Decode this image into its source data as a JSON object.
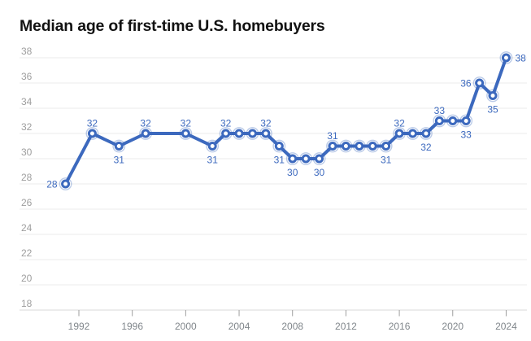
{
  "title": "Median age of first-time U.S. homebuyers",
  "chart_data": {
    "type": "line",
    "title": "Median age of first-time U.S. homebuyers",
    "xlabel": "",
    "ylabel": "",
    "ylim": [
      18,
      38
    ],
    "y_ticks": [
      38,
      36,
      34,
      32,
      30,
      28,
      26,
      24,
      22,
      20,
      18
    ],
    "x_ticks": [
      1992,
      1996,
      2000,
      2004,
      2008,
      2012,
      2016,
      2020,
      2024
    ],
    "grid": "horizontal",
    "legend": "none",
    "series": [
      {
        "name": "Median age",
        "points": [
          {
            "year": 1991,
            "value": 28,
            "label": "28",
            "label_pos": "left"
          },
          {
            "year": 1993,
            "value": 32,
            "label": "32",
            "label_pos": "above"
          },
          {
            "year": 1995,
            "value": 31,
            "label": "31",
            "label_pos": "below"
          },
          {
            "year": 1997,
            "value": 32,
            "label": "32",
            "label_pos": "above"
          },
          {
            "year": 2000,
            "value": 32,
            "label": "32",
            "label_pos": "above"
          },
          {
            "year": 2002,
            "value": 31,
            "label": "31",
            "label_pos": "below"
          },
          {
            "year": 2003,
            "value": 32,
            "label": "32",
            "label_pos": "above"
          },
          {
            "year": 2004,
            "value": 32,
            "label": null,
            "label_pos": null
          },
          {
            "year": 2005,
            "value": 32,
            "label": null,
            "label_pos": null
          },
          {
            "year": 2006,
            "value": 32,
            "label": "32",
            "label_pos": "above"
          },
          {
            "year": 2007,
            "value": 31,
            "label": "31",
            "label_pos": "below"
          },
          {
            "year": 2008,
            "value": 30,
            "label": "30",
            "label_pos": "below"
          },
          {
            "year": 2009,
            "value": 30,
            "label": null,
            "label_pos": null
          },
          {
            "year": 2010,
            "value": 30,
            "label": "30",
            "label_pos": "below"
          },
          {
            "year": 2011,
            "value": 31,
            "label": "31",
            "label_pos": "above"
          },
          {
            "year": 2012,
            "value": 31,
            "label": null,
            "label_pos": null
          },
          {
            "year": 2013,
            "value": 31,
            "label": null,
            "label_pos": null
          },
          {
            "year": 2014,
            "value": 31,
            "label": null,
            "label_pos": null
          },
          {
            "year": 2015,
            "value": 31,
            "label": "31",
            "label_pos": "below"
          },
          {
            "year": 2016,
            "value": 32,
            "label": "32",
            "label_pos": "above"
          },
          {
            "year": 2017,
            "value": 32,
            "label": null,
            "label_pos": null
          },
          {
            "year": 2018,
            "value": 32,
            "label": "32",
            "label_pos": "below"
          },
          {
            "year": 2019,
            "value": 33,
            "label": "33",
            "label_pos": "above"
          },
          {
            "year": 2020,
            "value": 33,
            "label": null,
            "label_pos": null
          },
          {
            "year": 2021,
            "value": 33,
            "label": "33",
            "label_pos": "below"
          },
          {
            "year": 2022,
            "value": 36,
            "label": "36",
            "label_pos": "left"
          },
          {
            "year": 2023,
            "value": 35,
            "label": "35",
            "label_pos": "below"
          },
          {
            "year": 2024,
            "value": 38,
            "label": "38",
            "label_pos": "right"
          }
        ]
      }
    ]
  },
  "colors": {
    "line": "#3c69be",
    "point_fill": "#ffffff",
    "halo": "rgba(60,105,190,0.35)",
    "data_label": "#3c69be",
    "grid": "#ebebeb",
    "axis_line": "#d8d8d8",
    "y_tick_label": "#9e9e9e",
    "x_tick_label": "#80868b",
    "tick_mark": "#9e9e9e",
    "title": "#121212",
    "background": "#ffffff"
  }
}
